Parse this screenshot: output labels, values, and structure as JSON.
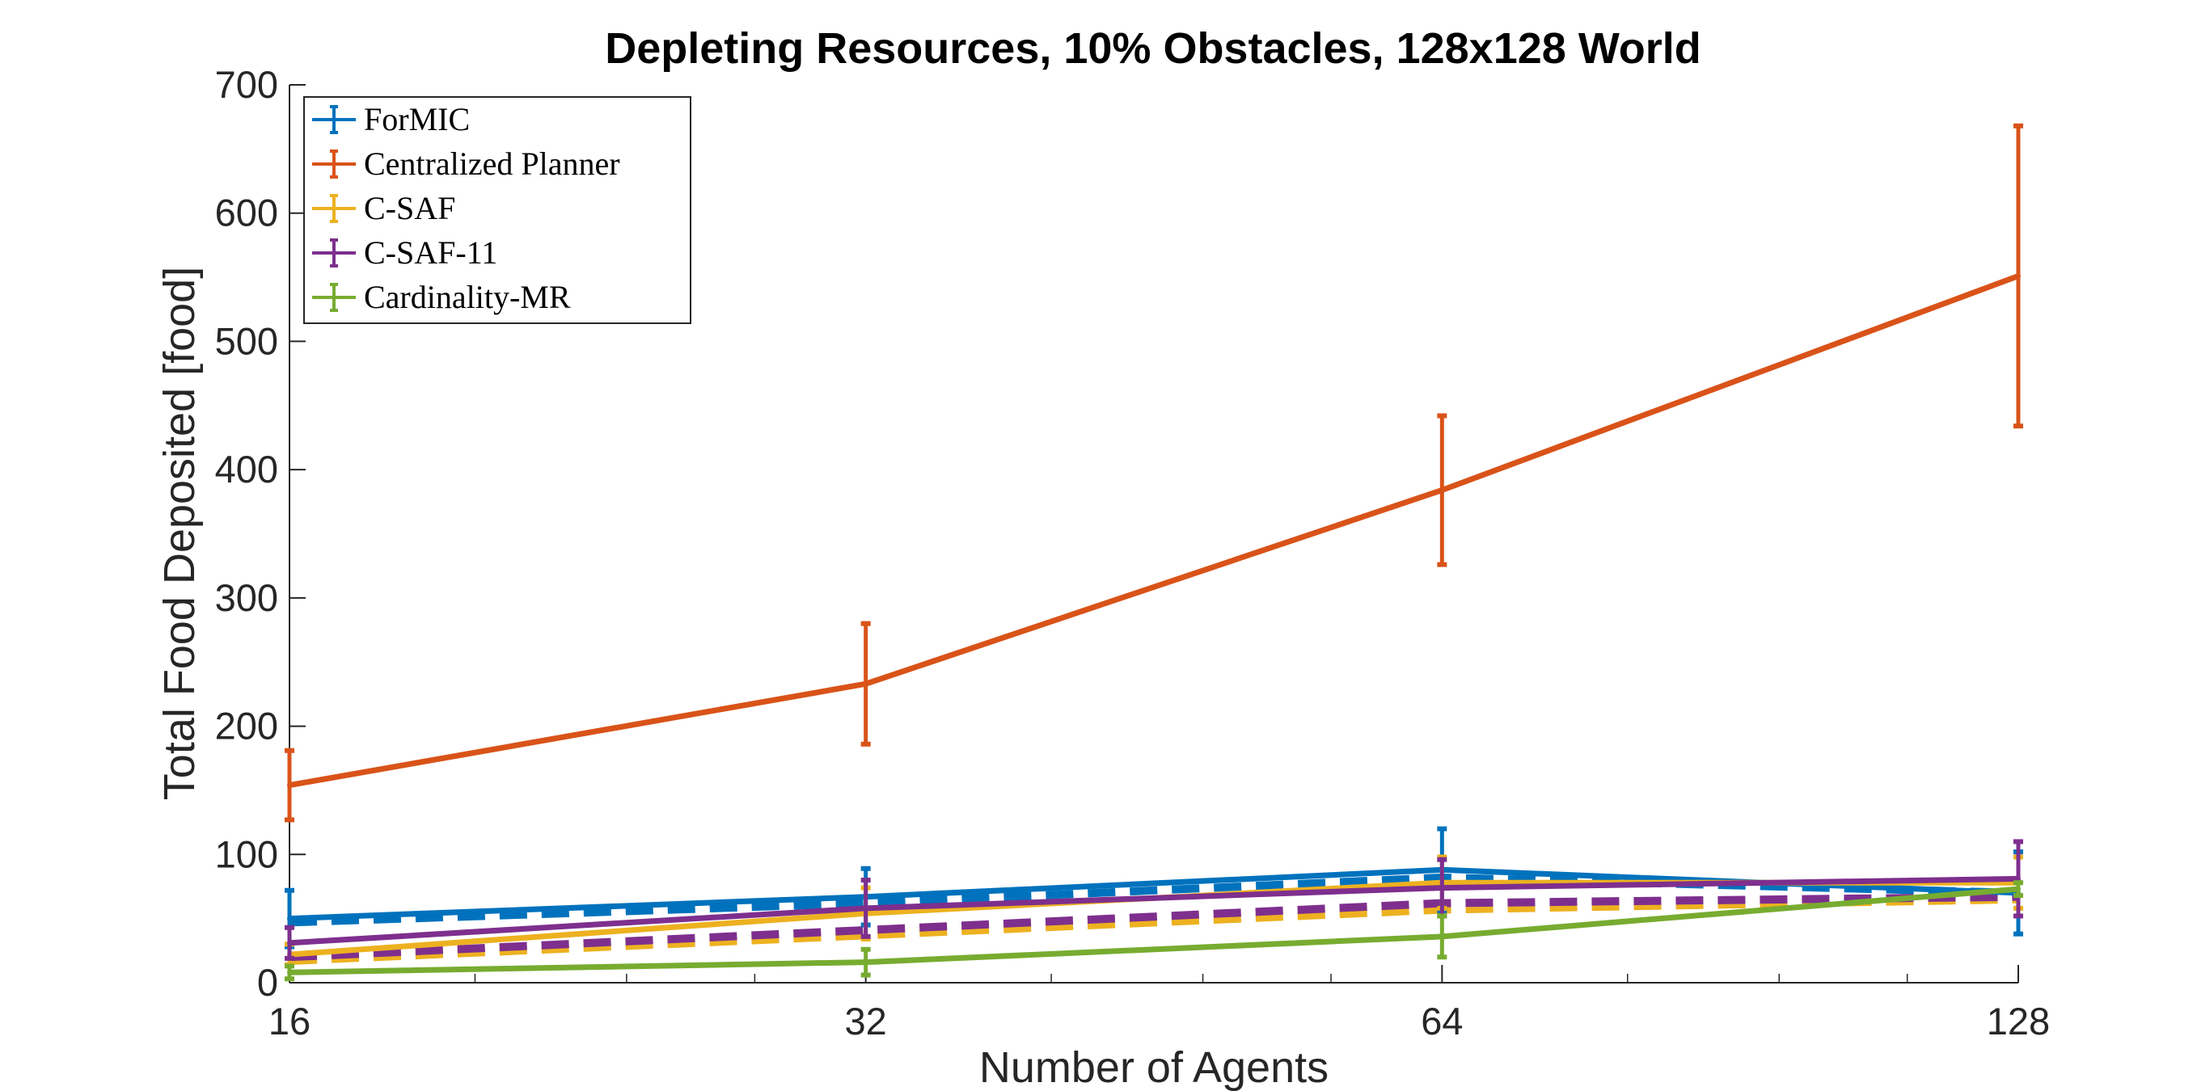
{
  "chart_data": {
    "type": "line",
    "title": "Depleting Resources, 10% Obstacles, 128x128 World",
    "xlabel": "Number of Agents",
    "ylabel": "Total Food Deposited [food]",
    "x_scale": "log2",
    "x": [
      16,
      32,
      64,
      128
    ],
    "x_ticks": [
      "16",
      "32",
      "64",
      "128"
    ],
    "xlim": [
      16,
      128
    ],
    "ylim": [
      0,
      700
    ],
    "y_ticks": [
      "0",
      "100",
      "200",
      "300",
      "400",
      "500",
      "600",
      "700"
    ],
    "grid": false,
    "legend_position": "top-left",
    "series": [
      {
        "name": "ForMIC",
        "color": "#0072BD",
        "values": [
          50,
          67,
          88,
          70
        ],
        "errors": [
          22,
          22,
          32,
          32
        ],
        "dashed_values": [
          47,
          62,
          82,
          70
        ]
      },
      {
        "name": "Centralized Planner",
        "color": "#D95319",
        "values": [
          154,
          233,
          384,
          551
        ],
        "errors": [
          27,
          47,
          58,
          117
        ]
      },
      {
        "name": "C-SAF",
        "color": "#EDB120",
        "values": [
          22,
          54,
          78,
          78
        ],
        "errors": [
          8,
          20,
          20,
          20
        ],
        "dashed_values": [
          17,
          37,
          57,
          65
        ]
      },
      {
        "name": "C-SAF-11",
        "color": "#7E2F8E",
        "values": [
          31,
          58,
          74,
          81
        ],
        "errors": [
          12,
          22,
          22,
          29
        ],
        "dashed_values": [
          20,
          41,
          62,
          67
        ]
      },
      {
        "name": "Cardinality-MR",
        "color": "#77AC30",
        "values": [
          8,
          16,
          36,
          73
        ],
        "errors": [
          5,
          10,
          16,
          5
        ]
      }
    ]
  }
}
